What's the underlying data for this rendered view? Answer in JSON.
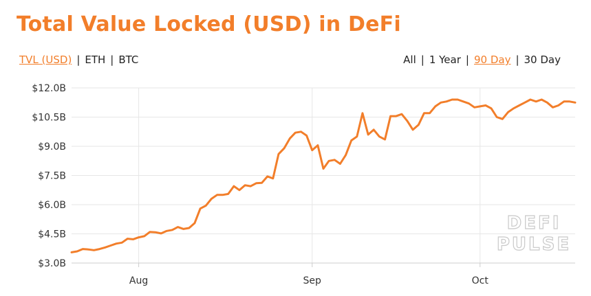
{
  "title": "Total Value Locked (USD) in DeFi",
  "metric_tabs": [
    {
      "label": "TVL (USD)",
      "active": true
    },
    {
      "label": "ETH",
      "active": false
    },
    {
      "label": "BTC",
      "active": false
    }
  ],
  "range_tabs": [
    {
      "label": "All",
      "active": false
    },
    {
      "label": "1 Year",
      "active": false
    },
    {
      "label": "90 Day",
      "active": true
    },
    {
      "label": "30 Day",
      "active": false
    }
  ],
  "separator": "|",
  "watermark": {
    "line1": "DEFI",
    "line2": "PULSE"
  },
  "colors": {
    "accent": "#f27e2a",
    "grid": "#e6e6e6",
    "text": "#222222"
  },
  "chart_data": {
    "type": "line",
    "title": "Total Value Locked (USD) in DeFi",
    "xlabel": "",
    "ylabel": "",
    "ylim": [
      3.0,
      12.0
    ],
    "y_unit": "billion USD",
    "yticks": [
      3.0,
      4.5,
      6.0,
      7.5,
      9.0,
      10.5,
      12.0
    ],
    "ytick_labels": [
      "$3.0B",
      "$4.5B",
      "$6.0B",
      "$7.5B",
      "$9.0B",
      "$10.5B",
      "$12.0B"
    ],
    "xticks": [
      {
        "date": "2020-08-01",
        "label": "Aug"
      },
      {
        "date": "2020-09-01",
        "label": "Sep"
      },
      {
        "date": "2020-10-01",
        "label": "Oct"
      }
    ],
    "x_range": [
      "2020-07-20",
      "2020-10-18"
    ],
    "grid": true,
    "series": [
      {
        "color": "#f27e2a",
        "x": [
          "2020-07-20",
          "2020-07-21",
          "2020-07-22",
          "2020-07-23",
          "2020-07-24",
          "2020-07-25",
          "2020-07-26",
          "2020-07-27",
          "2020-07-28",
          "2020-07-29",
          "2020-07-30",
          "2020-07-31",
          "2020-08-01",
          "2020-08-02",
          "2020-08-03",
          "2020-08-04",
          "2020-08-05",
          "2020-08-06",
          "2020-08-07",
          "2020-08-08",
          "2020-08-09",
          "2020-08-10",
          "2020-08-11",
          "2020-08-12",
          "2020-08-13",
          "2020-08-14",
          "2020-08-15",
          "2020-08-16",
          "2020-08-17",
          "2020-08-18",
          "2020-08-19",
          "2020-08-20",
          "2020-08-21",
          "2020-08-22",
          "2020-08-23",
          "2020-08-24",
          "2020-08-25",
          "2020-08-26",
          "2020-08-27",
          "2020-08-28",
          "2020-08-29",
          "2020-08-30",
          "2020-08-31",
          "2020-09-01",
          "2020-09-02",
          "2020-09-03",
          "2020-09-04",
          "2020-09-05",
          "2020-09-06",
          "2020-09-07",
          "2020-09-08",
          "2020-09-09",
          "2020-09-10",
          "2020-09-11",
          "2020-09-12",
          "2020-09-13",
          "2020-09-14",
          "2020-09-15",
          "2020-09-16",
          "2020-09-17",
          "2020-09-18",
          "2020-09-19",
          "2020-09-20",
          "2020-09-21",
          "2020-09-22",
          "2020-09-23",
          "2020-09-24",
          "2020-09-25",
          "2020-09-26",
          "2020-09-27",
          "2020-09-28",
          "2020-09-29",
          "2020-09-30",
          "2020-10-01",
          "2020-10-02",
          "2020-10-03",
          "2020-10-04",
          "2020-10-05",
          "2020-10-06",
          "2020-10-07",
          "2020-10-08",
          "2020-10-09",
          "2020-10-10",
          "2020-10-11",
          "2020-10-12",
          "2020-10-13",
          "2020-10-14",
          "2020-10-15",
          "2020-10-16",
          "2020-10-17",
          "2020-10-18"
        ],
        "values": [
          3.55,
          3.6,
          3.72,
          3.7,
          3.66,
          3.72,
          3.8,
          3.9,
          4.0,
          4.05,
          4.25,
          4.22,
          4.32,
          4.38,
          4.6,
          4.58,
          4.52,
          4.65,
          4.7,
          4.85,
          4.75,
          4.8,
          5.05,
          5.8,
          5.95,
          6.3,
          6.5,
          6.5,
          6.55,
          6.95,
          6.75,
          7.0,
          6.95,
          7.1,
          7.12,
          7.45,
          7.35,
          8.6,
          8.9,
          9.4,
          9.7,
          9.75,
          9.55,
          8.8,
          9.05,
          7.85,
          8.25,
          8.3,
          8.1,
          8.55,
          9.3,
          9.5,
          10.7,
          9.6,
          9.85,
          9.5,
          9.35,
          10.55,
          10.55,
          10.65,
          10.3,
          9.85,
          10.1,
          10.7,
          10.7,
          11.05,
          11.25,
          11.3,
          11.4,
          11.4,
          11.3,
          11.2,
          11.0,
          11.05,
          11.1,
          10.95,
          10.5,
          10.4,
          10.75,
          10.95,
          11.1,
          11.25,
          11.4,
          11.3,
          11.4,
          11.25,
          11.0,
          11.1,
          11.3,
          11.3,
          11.25
        ]
      }
    ]
  }
}
